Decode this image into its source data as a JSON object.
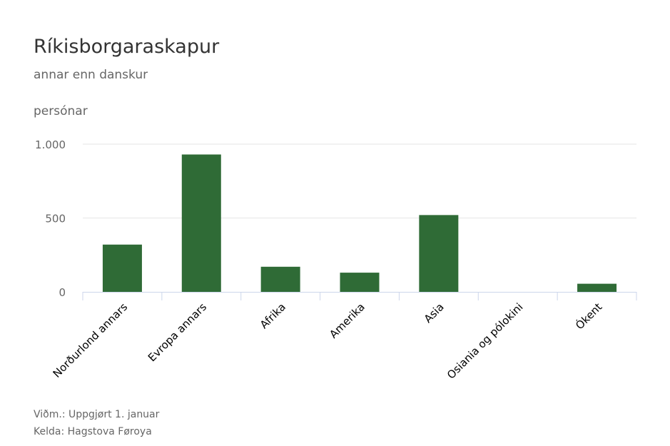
{
  "chart_data": {
    "type": "bar",
    "title": "Ríkisborgaraskapur",
    "subtitle": "annar enn danskur",
    "ylabel": "persónar",
    "categories": [
      "Norðurlond annars",
      "Evropa annars",
      "Afrika",
      "Amerika",
      "Asia",
      "Osiania og pólokini",
      "Ókent"
    ],
    "values": [
      320,
      930,
      170,
      130,
      520,
      0,
      55
    ],
    "ylim": [
      0,
      1000
    ],
    "yticks": [
      0,
      500,
      1000
    ],
    "ytick_labels": [
      "0",
      "500",
      "1.000"
    ],
    "bar_color": "#2f6b36",
    "grid": true
  },
  "footer": {
    "note": "Viðm.: Uppgjørt 1. januar",
    "source": "Kelda: Hagstova Føroya"
  }
}
